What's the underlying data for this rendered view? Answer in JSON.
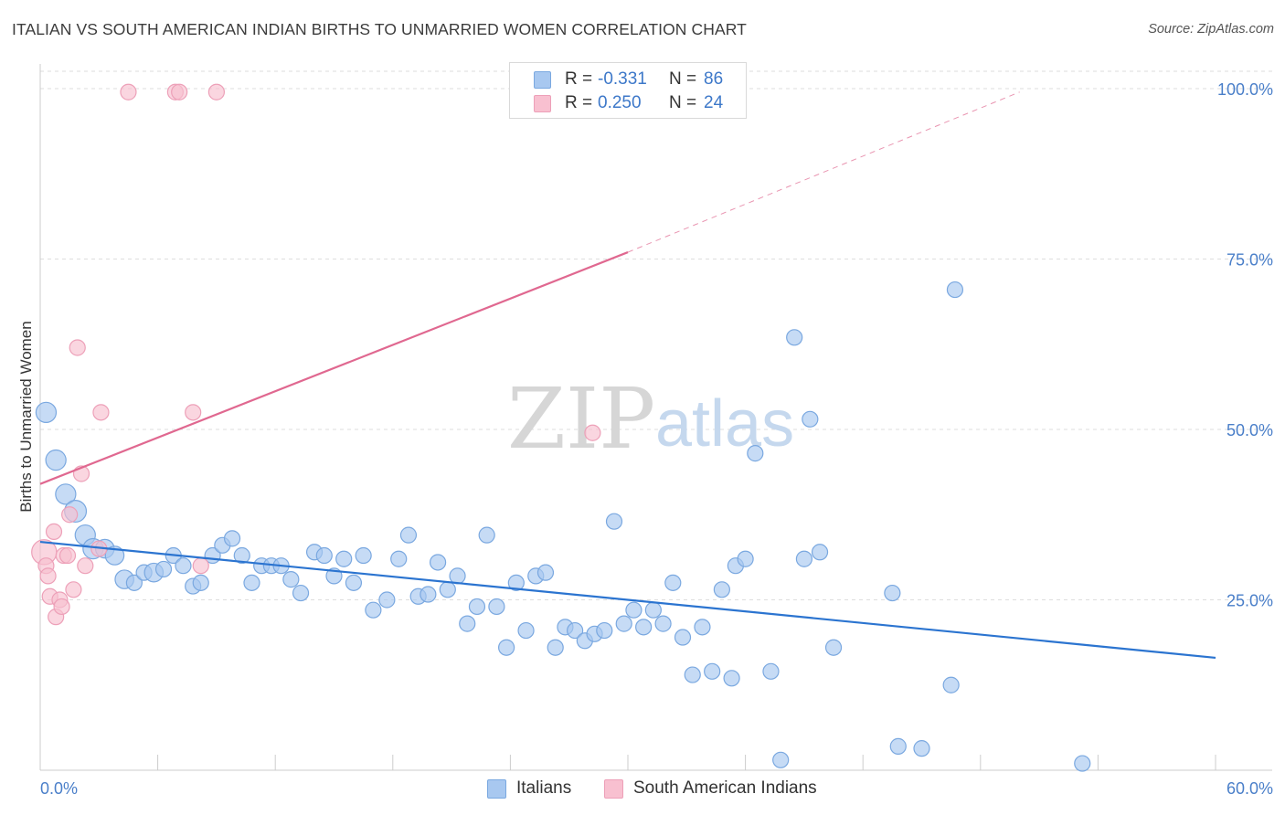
{
  "title": "ITALIAN VS SOUTH AMERICAN INDIAN BIRTHS TO UNMARRIED WOMEN CORRELATION CHART",
  "source": "Source: ZipAtlas.com",
  "watermark": {
    "zip": "ZIP",
    "atlas": "atlas"
  },
  "colors": {
    "blue_fill": "#a8c8f0",
    "blue_stroke": "#7aa8e0",
    "blue_line": "#2b74d0",
    "pink_fill": "#f8c0d0",
    "pink_stroke": "#eda0b8",
    "pink_line": "#e06890",
    "axis_text": "#4a7fc9",
    "grid": "#dddddd"
  },
  "legend": {
    "rows": [
      {
        "r_label": "R =",
        "r_value": "-0.331",
        "n_label": "N =",
        "n_value": "86"
      },
      {
        "r_label": "R =",
        "r_value": "0.250",
        "n_label": "N =",
        "n_value": "24"
      }
    ]
  },
  "bottom_legend": {
    "series1": "Italians",
    "series2": "South American Indians"
  },
  "chart_data": {
    "type": "scatter",
    "xlabel": "",
    "ylabel": "Births to Unmarried Women",
    "xlim": [
      0,
      60
    ],
    "ylim": [
      0,
      102
    ],
    "x_tick_labels": {
      "min": "0.0%",
      "max": "60.0%"
    },
    "y_ticks": [
      {
        "value": 25,
        "label": "25.0%"
      },
      {
        "value": 50,
        "label": "50.0%"
      },
      {
        "value": 75,
        "label": "75.0%"
      },
      {
        "value": 100,
        "label": "100.0%"
      }
    ],
    "series": [
      {
        "name": "Italians",
        "trend": {
          "x0": 0,
          "y0": 33.5,
          "x1": 60,
          "y1": 16.5
        },
        "points": [
          [
            0.3,
            52.5,
            1.3
          ],
          [
            0.8,
            45.5,
            1.3
          ],
          [
            1.3,
            40.5,
            1.3
          ],
          [
            1.8,
            38,
            1.4
          ],
          [
            2.3,
            34.5,
            1.3
          ],
          [
            2.7,
            32.5,
            1.3
          ],
          [
            3.3,
            32.5,
            1.2
          ],
          [
            3.8,
            31.5,
            1.2
          ],
          [
            4.3,
            28,
            1.2
          ],
          [
            4.8,
            27.5,
            1
          ],
          [
            5.3,
            29,
            1
          ],
          [
            5.8,
            29,
            1.2
          ],
          [
            6.3,
            29.5,
            1
          ],
          [
            6.8,
            31.5,
            1
          ],
          [
            7.3,
            30,
            1
          ],
          [
            7.8,
            27,
            1
          ],
          [
            8.2,
            27.5,
            1
          ],
          [
            8.8,
            31.5,
            1
          ],
          [
            9.3,
            33,
            1
          ],
          [
            9.8,
            34,
            1
          ],
          [
            10.3,
            31.5,
            1
          ],
          [
            10.8,
            27.5,
            1
          ],
          [
            11.3,
            30,
            1
          ],
          [
            11.8,
            30,
            1
          ],
          [
            12.3,
            30,
            1
          ],
          [
            12.8,
            28,
            1
          ],
          [
            13.3,
            26,
            1
          ],
          [
            14.0,
            32,
            1
          ],
          [
            14.5,
            31.5,
            1
          ],
          [
            15.0,
            28.5,
            1
          ],
          [
            15.5,
            31,
            1
          ],
          [
            16.0,
            27.5,
            1
          ],
          [
            16.5,
            31.5,
            1
          ],
          [
            17.0,
            23.5,
            1
          ],
          [
            17.7,
            25,
            1
          ],
          [
            18.3,
            31,
            1
          ],
          [
            18.8,
            34.5,
            1
          ],
          [
            19.3,
            25.5,
            1
          ],
          [
            19.8,
            25.8,
            1
          ],
          [
            20.3,
            30.5,
            1
          ],
          [
            20.8,
            26.5,
            1
          ],
          [
            21.3,
            28.5,
            1
          ],
          [
            21.8,
            21.5,
            1
          ],
          [
            22.3,
            24,
            1
          ],
          [
            22.8,
            34.5,
            1
          ],
          [
            23.3,
            24,
            1
          ],
          [
            23.8,
            18,
            1
          ],
          [
            24.3,
            27.5,
            1
          ],
          [
            24.8,
            20.5,
            1
          ],
          [
            25.3,
            28.5,
            1
          ],
          [
            25.8,
            29,
            1
          ],
          [
            26.3,
            18,
            1
          ],
          [
            26.8,
            21,
            1
          ],
          [
            27.3,
            20.5,
            1
          ],
          [
            27.8,
            19,
            1
          ],
          [
            28.3,
            20,
            1
          ],
          [
            28.8,
            20.5,
            1
          ],
          [
            29.3,
            36.5,
            1
          ],
          [
            29.8,
            21.5,
            1
          ],
          [
            30.3,
            23.5,
            1
          ],
          [
            30.8,
            21,
            1
          ],
          [
            31.3,
            23.5,
            1
          ],
          [
            31.8,
            21.5,
            1
          ],
          [
            32.3,
            27.5,
            1
          ],
          [
            32.8,
            19.5,
            1
          ],
          [
            33.3,
            14,
            1
          ],
          [
            33.8,
            21,
            1
          ],
          [
            34.3,
            14.5,
            1
          ],
          [
            34.8,
            26.5,
            1
          ],
          [
            35.3,
            13.5,
            1
          ],
          [
            35.5,
            30,
            1
          ],
          [
            36.0,
            31,
            1
          ],
          [
            36.5,
            46.5,
            1
          ],
          [
            37.3,
            14.5,
            1
          ],
          [
            37.8,
            1.5,
            1
          ],
          [
            38.5,
            63.5,
            1
          ],
          [
            39.0,
            31,
            1
          ],
          [
            39.3,
            51.5,
            1
          ],
          [
            39.8,
            32,
            1
          ],
          [
            40.5,
            18,
            1
          ],
          [
            43.5,
            26,
            1
          ],
          [
            43.8,
            3.5,
            1
          ],
          [
            45.0,
            3.2,
            1
          ],
          [
            46.5,
            12.5,
            1
          ],
          [
            46.7,
            70.5,
            1
          ],
          [
            53.2,
            1,
            1
          ]
        ]
      },
      {
        "name": "South American Indians",
        "trend": {
          "x0": 0,
          "y0": 42,
          "x1": 30,
          "y1": 76
        },
        "trend_extension": {
          "x0": 30,
          "y0": 76,
          "x1": 50,
          "y1": 99.5
        },
        "points": [
          [
            0.2,
            32,
            1.6
          ],
          [
            0.3,
            30,
            1
          ],
          [
            0.4,
            28.5,
            1
          ],
          [
            0.5,
            25.5,
            1
          ],
          [
            0.7,
            35,
            1
          ],
          [
            0.8,
            22.5,
            1
          ],
          [
            1.0,
            25,
            1
          ],
          [
            1.1,
            24,
            1
          ],
          [
            1.2,
            31.5,
            1
          ],
          [
            1.4,
            31.5,
            1
          ],
          [
            1.5,
            37.5,
            1
          ],
          [
            1.7,
            26.5,
            1
          ],
          [
            1.9,
            62,
            1
          ],
          [
            2.1,
            43.5,
            1
          ],
          [
            2.3,
            30,
            1
          ],
          [
            3.0,
            32.5,
            1
          ],
          [
            3.1,
            52.5,
            1
          ],
          [
            4.5,
            99.5,
            1
          ],
          [
            6.9,
            99.5,
            1
          ],
          [
            7.1,
            99.5,
            1
          ],
          [
            7.8,
            52.5,
            1
          ],
          [
            8.2,
            30,
            1
          ],
          [
            9.0,
            99.5,
            1
          ],
          [
            28.2,
            49.5,
            1
          ]
        ]
      }
    ]
  }
}
